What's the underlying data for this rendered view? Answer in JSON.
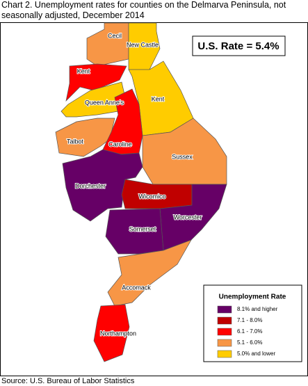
{
  "title": "Chart 2. Unemployment rates for counties on the Delmarva Peninsula, not seasonally adjusted, December 2014",
  "rate_box": "U.S. Rate = 5.4%",
  "counties": [
    {
      "label": "Cecil",
      "color": "#f79646"
    },
    {
      "label": "New Castle",
      "color": "#ffcc00"
    },
    {
      "label": "Kent",
      "color": "#ff0000"
    },
    {
      "label": "Queen Anne's",
      "color": "#ffcc00"
    },
    {
      "label": "Kent",
      "color": "#ffcc00"
    },
    {
      "label": "Talbot",
      "color": "#f79646"
    },
    {
      "label": "Caroline",
      "color": "#ff0000"
    },
    {
      "label": "Sussex",
      "color": "#f79646"
    },
    {
      "label": "Dorchester",
      "color": "#660066"
    },
    {
      "label": "Wicomico",
      "color": "#c00000"
    },
    {
      "label": "Worcester",
      "color": "#660066"
    },
    {
      "label": "Somerset",
      "color": "#660066"
    },
    {
      "label": "Accomack",
      "color": "#f79646"
    },
    {
      "label": "Northampton",
      "color": "#ff0000"
    }
  ],
  "legend": {
    "title": "Unemployment Rate",
    "items": [
      {
        "label": "8.1% and higher",
        "color": "#660066"
      },
      {
        "label": "7.1 - 8.0%",
        "color": "#c00000"
      },
      {
        "label": "6.1 - 7.0%",
        "color": "#ff0000"
      },
      {
        "label": "5.1 - 6.0%",
        "color": "#f79646"
      },
      {
        "label": "5.0% and lower",
        "color": "#ffcc00"
      }
    ]
  },
  "source": "Source: U.S. Bureau of Labor Statistics"
}
